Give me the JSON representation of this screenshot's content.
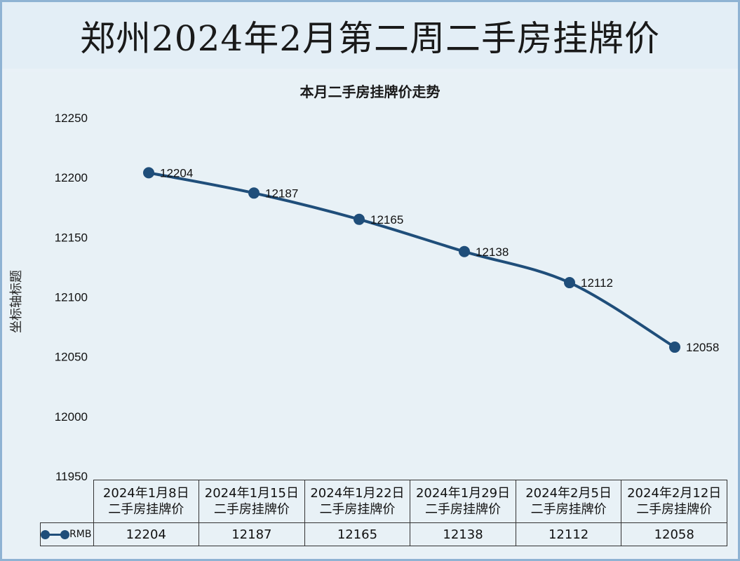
{
  "page_title": "郑州2024年2月第二周二手房挂牌价",
  "chart_data": {
    "type": "line",
    "title": "本月二手房挂牌价走势",
    "ylabel": "坐标轴标题",
    "xlabel": "",
    "ylim": [
      11950,
      12250
    ],
    "yticks": [
      11950,
      12000,
      12050,
      12100,
      12150,
      12200,
      12250
    ],
    "categories": [
      [
        "2024年1月8日",
        "二手房挂牌价"
      ],
      [
        "2024年1月15日",
        "二手房挂牌价"
      ],
      [
        "2024年1月22日",
        "二手房挂牌价"
      ],
      [
        "2024年1月29日",
        "二手房挂牌价"
      ],
      [
        "2024年2月5日",
        "二手房挂牌价"
      ],
      [
        "2024年2月12日",
        "二手房挂牌价"
      ]
    ],
    "series": [
      {
        "name": "RMB",
        "values": [
          12204,
          12187,
          12165,
          12138,
          12112,
          12058
        ],
        "color": "#1f4e7a"
      }
    ],
    "grid": false,
    "legend": "data-table"
  }
}
